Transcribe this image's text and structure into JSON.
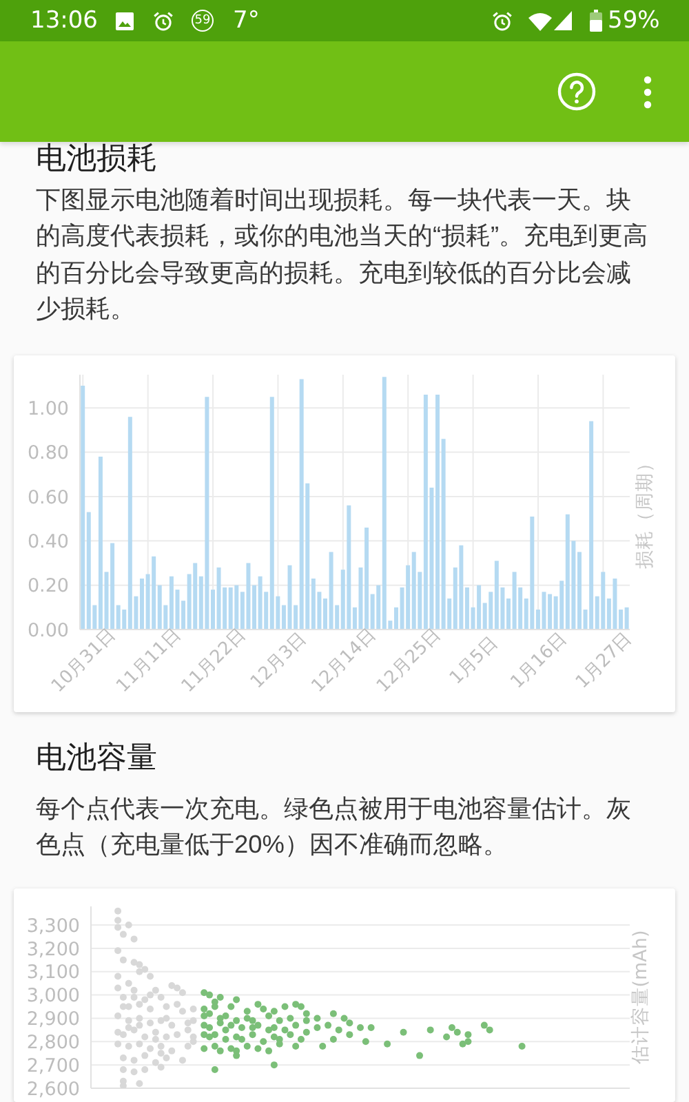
{
  "chart_data": [
    {
      "type": "bar",
      "title": "电池损耗",
      "subtitle": "下图显示电池随着时间出现损耗。每一块代表一天。块的高度代表损耗，或你的电池当天的“损耗”。充电到更高的百分比会导致更高的损耗。充电到较低的百分比会减少损耗。",
      "ylabel": "损耗（周期）",
      "annotations": [
        "13:06",
        "59",
        "7°",
        "59%"
      ],
      "categories": [
        "10月31日",
        null,
        null,
        null,
        null,
        null,
        null,
        null,
        null,
        null,
        null,
        "11月11日",
        null,
        null,
        null,
        null,
        null,
        null,
        null,
        null,
        null,
        null,
        "11月22日",
        null,
        null,
        null,
        null,
        null,
        null,
        null,
        null,
        null,
        null,
        "12月3日",
        null,
        null,
        null,
        null,
        null,
        null,
        null,
        null,
        null,
        null,
        "12月14日",
        null,
        null,
        null,
        null,
        null,
        null,
        null,
        null,
        null,
        null,
        "12月25日",
        null,
        null,
        null,
        null,
        null,
        null,
        null,
        null,
        null,
        null,
        "1月5日",
        null,
        null,
        null,
        null,
        null,
        null,
        null,
        null,
        null,
        null,
        "1月16日",
        null,
        null,
        null,
        null,
        null,
        null,
        null,
        null,
        null,
        null,
        "1月27日",
        null,
        null,
        null,
        null
      ],
      "values": [
        1.1,
        0.53,
        0.11,
        0.78,
        0.26,
        0.39,
        0.11,
        0.09,
        0.96,
        0.15,
        0.23,
        0.25,
        0.33,
        0.2,
        0.11,
        0.24,
        0.18,
        0.13,
        0.25,
        0.3,
        0.24,
        1.05,
        0.18,
        0.28,
        0.19,
        0.19,
        0.2,
        0.17,
        0.3,
        0.2,
        0.24,
        0.17,
        1.05,
        0.15,
        0.11,
        0.29,
        0.11,
        1.13,
        0.66,
        0.23,
        0.17,
        0.14,
        0.35,
        0.11,
        0.27,
        0.56,
        0.1,
        0.28,
        0.46,
        0.16,
        0.2,
        1.14,
        0.04,
        0.1,
        0.19,
        0.29,
        0.35,
        0.26,
        1.06,
        0.64,
        1.06,
        0.86,
        0.14,
        0.28,
        0.38,
        0.19,
        0.1,
        0.2,
        0.12,
        0.17,
        0.31,
        0.19,
        0.14,
        0.26,
        0.19,
        0.14,
        0.51,
        0.09,
        0.17,
        0.16,
        0.15,
        0.22,
        0.52,
        0.4,
        0.35,
        0.09,
        0.94,
        0.15,
        0.26,
        0.14,
        0.23,
        0.09,
        0.1
      ],
      "color": "#b5daf2",
      "ylim": [
        0,
        1.15
      ],
      "yticks": [
        {
          "value": 0,
          "label": "0.00"
        },
        {
          "value": 0.2,
          "label": "0.20"
        },
        {
          "value": 0.4,
          "label": "0.40"
        },
        {
          "value": 0.6,
          "label": "0.60"
        },
        {
          "value": 0.8,
          "label": "0.80"
        },
        {
          "value": 1,
          "label": "1.00"
        }
      ],
      "grid": true
    },
    {
      "type": "scatter",
      "title": "电池容量",
      "subtitle": "每个点代表一次充电。绿色点被用于电池容量估计。灰色点（充电量低于20%）因不准确而忽略。",
      "ylabel": "估计容量(mAh)",
      "categories": [
        null,
        null,
        null,
        null,
        null,
        null,
        null,
        null,
        null,
        null,
        null,
        null,
        null,
        null,
        null,
        null,
        null,
        null,
        null,
        null,
        null,
        null,
        null,
        null,
        null,
        null,
        null,
        null,
        null,
        null,
        null,
        null,
        null,
        null,
        null,
        null,
        null,
        null,
        null,
        null,
        null,
        null,
        null,
        null,
        null,
        null,
        null,
        null,
        null,
        null,
        null,
        null,
        null,
        null,
        null,
        null,
        null,
        null,
        null,
        null,
        null,
        null,
        null,
        null,
        null,
        null,
        null,
        null,
        null,
        null,
        null,
        null,
        null,
        null,
        null,
        null,
        null,
        null,
        null,
        null,
        null,
        null,
        null,
        null,
        null,
        null,
        null,
        null,
        null,
        null,
        null,
        null,
        null,
        null,
        null,
        null,
        null,
        null,
        null,
        null,
        null
      ],
      "series": [
        {
          "color": "#d8d8d8",
          "values": [
            null,
            null,
            null,
            null,
            null,
            3360,
            3260,
            3300,
            3240,
            3130,
            3110,
            3080,
            3020,
            2990,
            2950,
            3040,
            3030,
            3010,
            2880,
            2940,
            null,
            null,
            null,
            null,
            null,
            null,
            null,
            null,
            null,
            null,
            null,
            null,
            null,
            null,
            null,
            null,
            null,
            null,
            null,
            null,
            null,
            null,
            null,
            null,
            null,
            null,
            null,
            null,
            null,
            null,
            null,
            null,
            null,
            null,
            null,
            null,
            null,
            null,
            null,
            null,
            null,
            null,
            null,
            null,
            null,
            null,
            null,
            null,
            null,
            null,
            null,
            null,
            null,
            null,
            null,
            null,
            null,
            null,
            null,
            null,
            null,
            null,
            null,
            null,
            null,
            null,
            null,
            null,
            null,
            null,
            null,
            null,
            null,
            null,
            null,
            null,
            null,
            null,
            null,
            null,
            null
          ]
        },
        {
          "color": "#d8d8d8",
          "values": [
            null,
            null,
            null,
            null,
            null,
            3320,
            3150,
            3050,
            3140,
            3100,
            2980,
            3000,
            2840,
            2890,
            2900,
            2870,
            2960,
            2930,
            2850,
            2890,
            null,
            null,
            null,
            null,
            null,
            null,
            null,
            null,
            null,
            null,
            null,
            null,
            null,
            null,
            null,
            null,
            null,
            null,
            null,
            null,
            null,
            null,
            null,
            null,
            null,
            null,
            null,
            null,
            null,
            null,
            null,
            null,
            null,
            null,
            null,
            null,
            null,
            null,
            null,
            null,
            null,
            null,
            null,
            null,
            null,
            null,
            null,
            null,
            null,
            null,
            null,
            null,
            null,
            null,
            null,
            null,
            null,
            null,
            null,
            null,
            null,
            null,
            null,
            null,
            null,
            null,
            null,
            null,
            null,
            null,
            null,
            null,
            null,
            null,
            null,
            null,
            null,
            null,
            null,
            null,
            null
          ]
        },
        {
          "color": "#d8d8d8",
          "values": [
            null,
            null,
            null,
            null,
            null,
            3290,
            2990,
            2950,
            3020,
            2960,
            2820,
            2940,
            2810,
            2780,
            2820,
            2760,
            2830,
            2720,
            2780,
            2820,
            null,
            null,
            null,
            null,
            null,
            null,
            null,
            null,
            null,
            null,
            null,
            null,
            null,
            null,
            null,
            null,
            null,
            null,
            null,
            null,
            null,
            null,
            null,
            null,
            null,
            null,
            null,
            null,
            null,
            null,
            null,
            null,
            null,
            null,
            null,
            null,
            null,
            null,
            null,
            null,
            null,
            null,
            null,
            null,
            null,
            null,
            null,
            null,
            null,
            null,
            null,
            null,
            null,
            null,
            null,
            null,
            null,
            null,
            null,
            null,
            null,
            null,
            null,
            null,
            null,
            null,
            null,
            null,
            null,
            null,
            null,
            null,
            null,
            null,
            null,
            null,
            null,
            null,
            null,
            null,
            null
          ]
        },
        {
          "color": "#d8d8d8",
          "values": [
            null,
            null,
            null,
            null,
            null,
            3190,
            2950,
            2890,
            2990,
            2900,
            2740,
            2880,
            2710,
            2750,
            2730,
            null,
            null,
            null,
            null,
            2800,
            null,
            null,
            null,
            null,
            null,
            null,
            null,
            null,
            null,
            null,
            null,
            null,
            null,
            null,
            null,
            null,
            null,
            null,
            null,
            null,
            null,
            null,
            null,
            null,
            null,
            null,
            null,
            null,
            null,
            null,
            null,
            null,
            null,
            null,
            null,
            null,
            null,
            null,
            null,
            null,
            null,
            null,
            null,
            null,
            null,
            null,
            null,
            null,
            null,
            null,
            null,
            null,
            null,
            null,
            null,
            null,
            null,
            null,
            null,
            null,
            null,
            null,
            null,
            null,
            null,
            null,
            null,
            null,
            null,
            null,
            null,
            null,
            null,
            null,
            null,
            null,
            null,
            null,
            null,
            null,
            null
          ]
        },
        {
          "color": "#d8d8d8",
          "values": [
            null,
            null,
            null,
            null,
            null,
            3080,
            2830,
            2860,
            2850,
            2870,
            2680,
            2770,
            null,
            2690,
            null,
            null,
            null,
            null,
            null,
            null,
            null,
            null,
            null,
            null,
            null,
            null,
            null,
            null,
            null,
            null,
            null,
            null,
            null,
            null,
            null,
            null,
            null,
            null,
            null,
            null,
            null,
            null,
            null,
            null,
            null,
            null,
            null,
            null,
            null,
            null,
            null,
            null,
            null,
            null,
            null,
            null,
            null,
            null,
            null,
            null,
            null,
            null,
            null,
            null,
            null,
            null,
            null,
            null,
            null,
            null,
            null,
            null,
            null,
            null,
            null,
            null,
            null,
            null,
            null,
            null,
            null,
            null,
            null,
            null,
            null,
            null,
            null,
            null,
            null,
            null,
            null,
            null,
            null,
            null,
            null,
            null,
            null,
            null,
            null,
            null,
            null
          ]
        },
        {
          "color": "#d8d8d8",
          "values": [
            null,
            null,
            null,
            null,
            null,
            3030,
            2730,
            2780,
            2720,
            2790,
            null,
            null,
            null,
            null,
            null,
            null,
            null,
            null,
            null,
            null,
            null,
            null,
            null,
            null,
            null,
            null,
            null,
            null,
            null,
            null,
            null,
            null,
            null,
            null,
            null,
            null,
            null,
            null,
            null,
            null,
            null,
            null,
            null,
            null,
            null,
            null,
            null,
            null,
            null,
            null,
            null,
            null,
            null,
            null,
            null,
            null,
            null,
            null,
            null,
            null,
            null,
            null,
            null,
            null,
            null,
            null,
            null,
            null,
            null,
            null,
            null,
            null,
            null,
            null,
            null,
            null,
            null,
            null,
            null,
            null,
            null,
            null,
            null,
            null,
            null,
            null,
            null,
            null,
            null,
            null,
            null,
            null,
            null,
            null,
            null,
            null,
            null,
            null,
            null,
            null,
            null
          ]
        },
        {
          "color": "#d8d8d8",
          "values": [
            null,
            null,
            null,
            null,
            null,
            2910,
            2680,
            null,
            2670,
            2620,
            null,
            null,
            null,
            null,
            null,
            null,
            null,
            null,
            null,
            null,
            null,
            null,
            null,
            null,
            null,
            null,
            null,
            null,
            null,
            null,
            null,
            null,
            null,
            null,
            null,
            null,
            null,
            null,
            null,
            null,
            null,
            null,
            null,
            null,
            null,
            null,
            null,
            null,
            null,
            null,
            null,
            null,
            null,
            null,
            null,
            null,
            null,
            null,
            null,
            null,
            null,
            null,
            null,
            null,
            null,
            null,
            null,
            null,
            null,
            null,
            null,
            null,
            null,
            null,
            null,
            null,
            null,
            null,
            null,
            null,
            null,
            null,
            null,
            null,
            null,
            null,
            null,
            null,
            null,
            null,
            null,
            null,
            null,
            null,
            null,
            null,
            null,
            null,
            null,
            null,
            null
          ]
        },
        {
          "color": "#d8d8d8",
          "values": [
            null,
            null,
            null,
            null,
            null,
            2840,
            2630,
            null,
            null,
            null,
            null,
            null,
            null,
            null,
            null,
            null,
            null,
            null,
            null,
            null,
            null,
            null,
            null,
            null,
            null,
            null,
            null,
            null,
            null,
            null,
            null,
            null,
            null,
            null,
            null,
            null,
            null,
            null,
            null,
            null,
            null,
            null,
            null,
            null,
            null,
            null,
            null,
            null,
            null,
            null,
            null,
            null,
            null,
            null,
            null,
            null,
            null,
            null,
            null,
            null,
            null,
            null,
            null,
            null,
            null,
            null,
            null,
            null,
            null,
            null,
            null,
            null,
            null,
            null,
            null,
            null,
            null,
            null,
            null,
            null,
            null,
            null,
            null,
            null,
            null,
            null,
            null,
            null,
            null,
            null,
            null,
            null,
            null,
            null,
            null,
            null,
            null,
            null,
            null,
            null,
            null
          ]
        },
        {
          "color": "#d8d8d8",
          "values": [
            null,
            null,
            null,
            null,
            null,
            2790,
            2610,
            null,
            null,
            null,
            null,
            null,
            null,
            null,
            null,
            null,
            null,
            null,
            null,
            null,
            null,
            null,
            null,
            null,
            null,
            null,
            null,
            null,
            null,
            null,
            null,
            null,
            null,
            null,
            null,
            null,
            null,
            null,
            null,
            null,
            null,
            null,
            null,
            null,
            null,
            null,
            null,
            null,
            null,
            null,
            null,
            null,
            null,
            null,
            null,
            null,
            null,
            null,
            null,
            null,
            null,
            null,
            null,
            null,
            null,
            null,
            null,
            null,
            null,
            null,
            null,
            null,
            null,
            null,
            null,
            null,
            null,
            null,
            null,
            null,
            null,
            null,
            null,
            null,
            null,
            null,
            null,
            null,
            null,
            null,
            null,
            null,
            null,
            null,
            null,
            null,
            null,
            null,
            null,
            null,
            null
          ]
        },
        {
          "color": "#7bbf78",
          "values": [
            null,
            null,
            null,
            null,
            null,
            null,
            null,
            null,
            null,
            null,
            null,
            null,
            null,
            null,
            null,
            null,
            null,
            null,
            null,
            null,
            null,
            3010,
            3000,
            2970,
            2990,
            2910,
            2950,
            2980,
            2860,
            2930,
            2890,
            2960,
            2940,
            2910,
            2930,
            2890,
            2950,
            2900,
            2960,
            2950,
            2920,
            null,
            2900,
            2780,
            2870,
            2920,
            2850,
            2900,
            2880,
            null,
            2860,
            2800,
            2860,
            null,
            null,
            2790,
            null,
            null,
            2840,
            null,
            null,
            2740,
            null,
            2850,
            null,
            null,
            2820,
            2860,
            2840,
            2790,
            2830,
            null,
            null,
            2870,
            2850,
            null,
            null,
            null,
            null,
            null,
            2780,
            null,
            null,
            null,
            null,
            null,
            null,
            null,
            null,
            null,
            null,
            null,
            null,
            null,
            null,
            null,
            null,
            null,
            null,
            null,
            null
          ]
        },
        {
          "color": "#7bbf78",
          "values": [
            null,
            null,
            null,
            null,
            null,
            null,
            null,
            null,
            null,
            null,
            null,
            null,
            null,
            null,
            null,
            null,
            null,
            null,
            null,
            null,
            null,
            2940,
            2920,
            2950,
            2900,
            2850,
            2870,
            2890,
            2810,
            2900,
            2860,
            2870,
            2800,
            2850,
            2860,
            2810,
            2850,
            2830,
            2870,
            2810,
            2890,
            null,
            2860,
            null,
            null,
            2810,
            null,
            null,
            2830,
            null,
            null,
            null,
            null,
            null,
            null,
            null,
            null,
            null,
            null,
            null,
            null,
            null,
            null,
            null,
            null,
            null,
            null,
            null,
            null,
            null,
            2800,
            null,
            null,
            null,
            null,
            null,
            null,
            null,
            null,
            null,
            null,
            null,
            null,
            null,
            null,
            null,
            null,
            null,
            null,
            null,
            null,
            null,
            null,
            null,
            null,
            null,
            null,
            null,
            null,
            null,
            null
          ]
        },
        {
          "color": "#7bbf78",
          "values": [
            null,
            null,
            null,
            null,
            null,
            null,
            null,
            null,
            null,
            null,
            null,
            null,
            null,
            null,
            null,
            null,
            null,
            null,
            null,
            null,
            null,
            2910,
            2860,
            2830,
            2880,
            2810,
            2770,
            2820,
            null,
            2780,
            2830,
            2770,
            null,
            2760,
            2820,
            2790,
            null,
            null,
            2780,
            null,
            2840,
            null,
            null,
            null,
            null,
            null,
            null,
            null,
            null,
            null,
            null,
            null,
            null,
            null,
            null,
            null,
            null,
            null,
            null,
            null,
            null,
            null,
            null,
            null,
            null,
            null,
            null,
            null,
            null,
            null,
            null,
            null,
            null,
            null,
            null,
            null,
            null,
            null,
            null,
            null,
            null,
            null,
            null,
            null,
            null,
            null,
            null,
            null,
            null,
            null,
            null,
            null,
            null,
            null,
            null,
            null,
            null,
            null,
            null,
            null,
            null
          ]
        },
        {
          "color": "#7bbf78",
          "values": [
            null,
            null,
            null,
            null,
            null,
            null,
            null,
            null,
            null,
            null,
            null,
            null,
            null,
            null,
            null,
            null,
            null,
            null,
            null,
            null,
            null,
            2870,
            2820,
            2780,
            2760,
            null,
            null,
            2760,
            null,
            null,
            null,
            null,
            null,
            null,
            2700,
            null,
            null,
            null,
            null,
            null,
            null,
            null,
            null,
            null,
            null,
            null,
            null,
            null,
            null,
            null,
            null,
            null,
            null,
            null,
            null,
            null,
            null,
            null,
            null,
            null,
            null,
            null,
            null,
            null,
            null,
            null,
            null,
            null,
            null,
            null,
            null,
            null,
            null,
            null,
            null,
            null,
            null,
            null,
            null,
            null,
            null,
            null,
            null,
            null,
            null,
            null,
            null,
            null,
            null,
            null,
            null,
            null,
            null,
            null,
            null,
            null,
            null,
            null,
            null,
            null,
            null
          ]
        },
        {
          "color": "#7bbf78",
          "values": [
            null,
            null,
            null,
            null,
            null,
            null,
            null,
            null,
            null,
            null,
            null,
            null,
            null,
            null,
            null,
            null,
            null,
            null,
            null,
            null,
            null,
            2830,
            null,
            2680,
            null,
            null,
            null,
            2740,
            null,
            null,
            null,
            null,
            null,
            null,
            null,
            null,
            null,
            null,
            null,
            null,
            null,
            null,
            null,
            null,
            null,
            null,
            null,
            null,
            null,
            null,
            null,
            null,
            null,
            null,
            null,
            null,
            null,
            null,
            null,
            null,
            null,
            null,
            null,
            null,
            null,
            null,
            null,
            null,
            null,
            null,
            null,
            null,
            null,
            null,
            null,
            null,
            null,
            null,
            null,
            null,
            null,
            null,
            null,
            null,
            null,
            null,
            null,
            null,
            null,
            null,
            null,
            null,
            null,
            null,
            null,
            null,
            null,
            null,
            null,
            null,
            null
          ]
        },
        {
          "color": "#7bbf78",
          "values": [
            null,
            null,
            null,
            null,
            null,
            null,
            null,
            null,
            null,
            null,
            null,
            null,
            null,
            null,
            null,
            null,
            null,
            null,
            null,
            null,
            null,
            2770,
            null,
            null,
            null,
            null,
            null,
            null,
            null,
            null,
            null,
            null,
            null,
            null,
            null,
            null,
            null,
            null,
            null,
            null,
            null,
            null,
            null,
            null,
            null,
            null,
            null,
            null,
            null,
            null,
            null,
            null,
            null,
            null,
            null,
            null,
            null,
            null,
            null,
            null,
            null,
            null,
            null,
            null,
            null,
            null,
            null,
            null,
            null,
            null,
            null,
            null,
            null,
            null,
            null,
            null,
            null,
            null,
            null,
            null,
            null,
            null,
            null,
            null,
            null,
            null,
            null,
            null,
            null,
            null,
            null,
            null,
            null,
            null,
            null,
            null,
            null,
            null,
            null,
            null,
            null
          ]
        }
      ],
      "ylim": [
        2600,
        3380
      ],
      "yticks": [
        {
          "value": 2600,
          "label": "2,600"
        },
        {
          "value": 2700,
          "label": "2,700"
        },
        {
          "value": 2800,
          "label": "2,800"
        },
        {
          "value": 2900,
          "label": "2,900"
        },
        {
          "value": 3000,
          "label": "3,000"
        },
        {
          "value": 3100,
          "label": "3,100"
        },
        {
          "value": 3200,
          "label": "3,200"
        },
        {
          "value": 3300,
          "label": "3,300"
        }
      ],
      "tick_labels": "y",
      "grid": "y",
      "marker": "circle"
    }
  ]
}
